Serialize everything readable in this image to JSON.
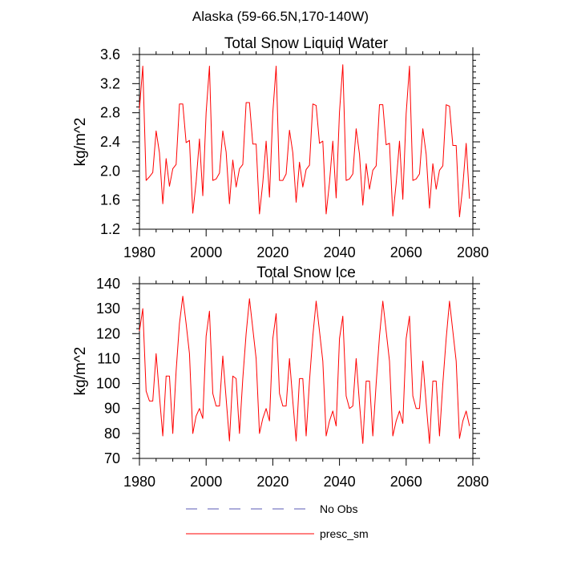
{
  "figure": {
    "suptitle": "Alaska (59-66.5N,170-140W)"
  },
  "colors": {
    "series": "#ff0000",
    "obs": "#5a5ab4"
  },
  "legend": {
    "placement": "bottom-center",
    "items": [
      {
        "label": "No Obs",
        "style": "dashed",
        "color": "#5a5ab4"
      },
      {
        "label": "presc_sm",
        "style": "solid",
        "color": "#ff0000"
      }
    ]
  },
  "chart_data": [
    {
      "type": "line",
      "title": "Total Snow Liquid Water",
      "xlabel": "",
      "ylabel": "kg/m^2",
      "xlim": [
        1980,
        2080
      ],
      "ylim": [
        1.2,
        3.6
      ],
      "xticks": [
        "1980",
        "2000",
        "2020",
        "2040",
        "2060",
        "2080"
      ],
      "yticks": [
        "1.2",
        "1.6",
        "2.0",
        "2.4",
        "2.8",
        "3.2",
        "3.6"
      ],
      "grid": false,
      "series": [
        {
          "name": "presc_sm",
          "x_start": 1980,
          "x_step": 1,
          "values": [
            2.85,
            3.44,
            1.87,
            1.92,
            1.98,
            2.55,
            2.25,
            1.55,
            2.17,
            1.79,
            2.03,
            2.09,
            2.92,
            2.92,
            2.39,
            2.42,
            1.42,
            1.85,
            2.44,
            1.66,
            2.8,
            3.44,
            1.87,
            1.89,
            1.97,
            2.55,
            2.26,
            1.55,
            2.15,
            1.78,
            2.03,
            2.09,
            2.94,
            2.94,
            2.37,
            2.37,
            1.41,
            1.84,
            2.41,
            1.64,
            2.8,
            3.44,
            1.87,
            1.87,
            1.96,
            2.56,
            2.25,
            1.57,
            2.12,
            1.78,
            2.02,
            2.08,
            2.92,
            2.9,
            2.38,
            2.41,
            1.41,
            1.84,
            2.41,
            1.63,
            2.81,
            3.46,
            1.87,
            1.89,
            1.96,
            2.58,
            2.23,
            1.53,
            2.1,
            1.75,
            2.01,
            2.07,
            2.91,
            2.91,
            2.36,
            2.38,
            1.38,
            1.83,
            2.41,
            1.61,
            2.79,
            3.44,
            1.87,
            1.89,
            1.96,
            2.58,
            2.23,
            1.49,
            2.1,
            1.75,
            2.01,
            2.07,
            2.91,
            2.89,
            2.35,
            2.35,
            1.37,
            1.8,
            2.38,
            1.62
          ]
        }
      ]
    },
    {
      "type": "line",
      "title": "Total Snow Ice",
      "xlabel": "",
      "ylabel": "kg/m^2",
      "xlim": [
        1980,
        2080
      ],
      "ylim": [
        70,
        140
      ],
      "xticks": [
        "1980",
        "2000",
        "2020",
        "2040",
        "2060",
        "2080"
      ],
      "yticks": [
        "70",
        "80",
        "90",
        "100",
        "110",
        "120",
        "130",
        "140"
      ],
      "grid": false,
      "series": [
        {
          "name": "presc_sm",
          "x_start": 1980,
          "x_step": 1,
          "values": [
            121,
            130,
            97,
            93,
            93,
            112,
            95,
            79,
            103,
            103,
            80,
            105,
            124,
            135,
            124,
            112,
            80,
            87,
            90,
            86,
            119,
            129,
            96,
            91,
            91,
            111,
            94,
            77,
            103,
            102,
            80,
            102,
            120,
            134,
            122,
            110,
            80,
            86,
            90,
            85,
            118,
            128,
            96,
            91,
            91,
            110,
            93,
            77,
            102,
            102,
            79,
            101,
            119,
            133,
            121,
            109,
            79,
            85,
            89,
            83,
            118,
            127,
            95,
            90,
            91,
            110,
            92,
            76,
            101,
            101,
            79,
            100,
            119,
            133,
            121,
            109,
            79,
            85,
            89,
            84,
            118,
            127,
            95,
            90,
            90,
            109,
            92,
            76,
            101,
            101,
            79,
            100,
            118,
            133,
            121,
            109,
            78,
            85,
            89,
            83
          ]
        }
      ]
    }
  ]
}
